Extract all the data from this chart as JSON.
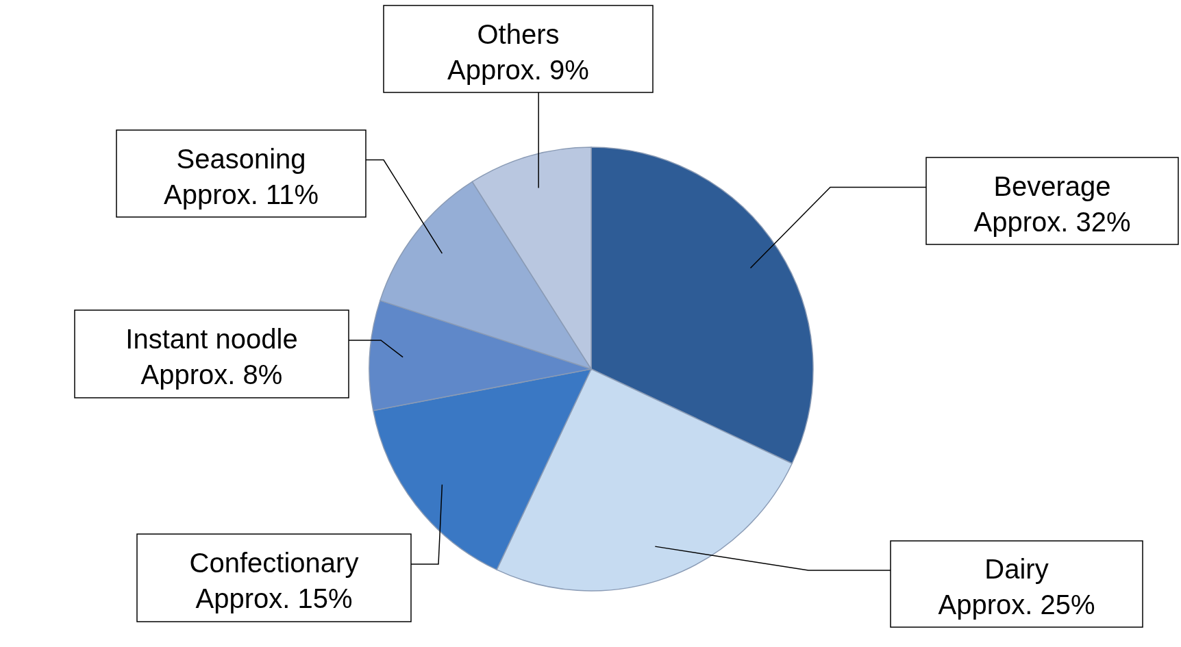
{
  "chart_data": {
    "type": "pie",
    "categories": [
      "Beverage",
      "Dairy",
      "Confectionary",
      "Instant noodle",
      "Seasoning",
      "Others"
    ],
    "values": [
      32,
      25,
      15,
      8,
      11,
      9
    ],
    "colors": [
      "#2e5c96",
      "#c6dbf1",
      "#3a78c4",
      "#5f88c9",
      "#95aed6",
      "#b9c7e0"
    ],
    "value_labels": [
      "Approx. 32%",
      "Approx. 25%",
      "Approx. 15%",
      "Approx. 8%",
      "Approx. 11%",
      "Approx. 9%"
    ]
  }
}
